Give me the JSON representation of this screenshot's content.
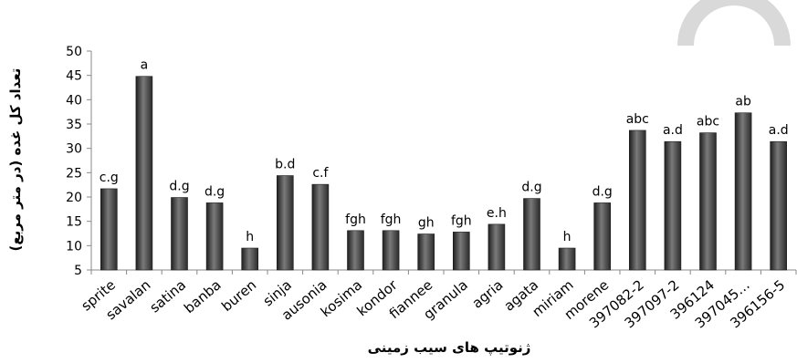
{
  "chart_data": {
    "type": "bar",
    "title": "",
    "xlabel": "ژنوتیپ های سیب زمینی",
    "ylabel": "تعداد کل غده (در متر مربع)",
    "ylim": [
      5,
      50
    ],
    "yticks": [
      5,
      10,
      15,
      20,
      25,
      30,
      35,
      40,
      45,
      50
    ],
    "grid": false,
    "legend": "none",
    "categories": [
      "sprite",
      "savalan",
      "satina",
      "banba",
      "buren",
      "sinja",
      "ausonia",
      "kosima",
      "kondor",
      "fiannee",
      "granula",
      "agria",
      "agata",
      "miriam",
      "morene",
      "397082-2",
      "397097-2",
      "396124",
      "397045…",
      "396156-5"
    ],
    "values": [
      21.7,
      44.8,
      19.9,
      18.8,
      9.5,
      24.4,
      22.6,
      13.1,
      13.1,
      12.4,
      12.8,
      14.4,
      19.7,
      9.5,
      18.8,
      33.7,
      31.4,
      33.2,
      37.3,
      31.4
    ],
    "data_labels": [
      "c.g",
      "a",
      "d.g",
      "d.g",
      "h",
      "b.d",
      "c.f",
      "fgh",
      "fgh",
      "gh",
      "fgh",
      "e.h",
      "d.g",
      "h",
      "d.g",
      "abc",
      "a.d",
      "abc",
      "ab",
      "a.d"
    ],
    "colors": {
      "bar": "#3b3b3b",
      "bar_highlight": "#8a8a8a",
      "axis": "#888888",
      "text": "#000000",
      "decor": "#d9d9d9"
    }
  }
}
